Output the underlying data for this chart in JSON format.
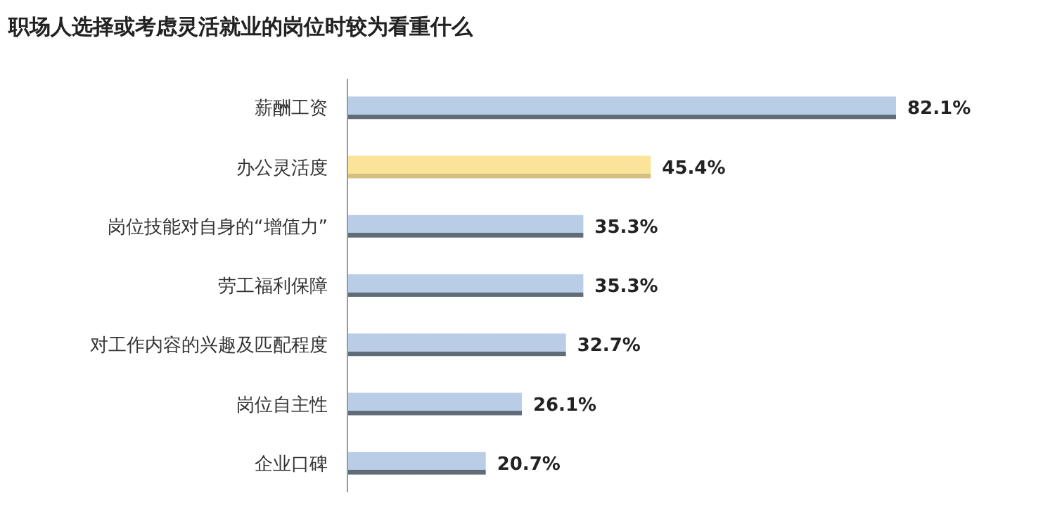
{
  "chart_data": {
    "type": "bar",
    "orientation": "horizontal",
    "title": "职场人选择或考虑灵活就业的岗位时较为看重什么",
    "categories": [
      "薪酬工资",
      "办公灵活度",
      "岗位技能对自身的“增值力”",
      "劳工福利保障",
      "对工作内容的兴趣及匹配程度",
      "岗位自主性",
      "企业口碑"
    ],
    "values": [
      82.1,
      45.4,
      35.3,
      35.3,
      32.7,
      26.1,
      20.7
    ],
    "value_labels": [
      "82.1%",
      "45.4%",
      "35.3%",
      "35.3%",
      "32.7%",
      "26.1%",
      "20.7%"
    ],
    "colors": [
      "#b9cde6",
      "#fbe49a",
      "#b9cde6",
      "#b9cde6",
      "#b9cde6",
      "#b9cde6",
      "#b9cde6"
    ],
    "tick_labels": "y"
  }
}
